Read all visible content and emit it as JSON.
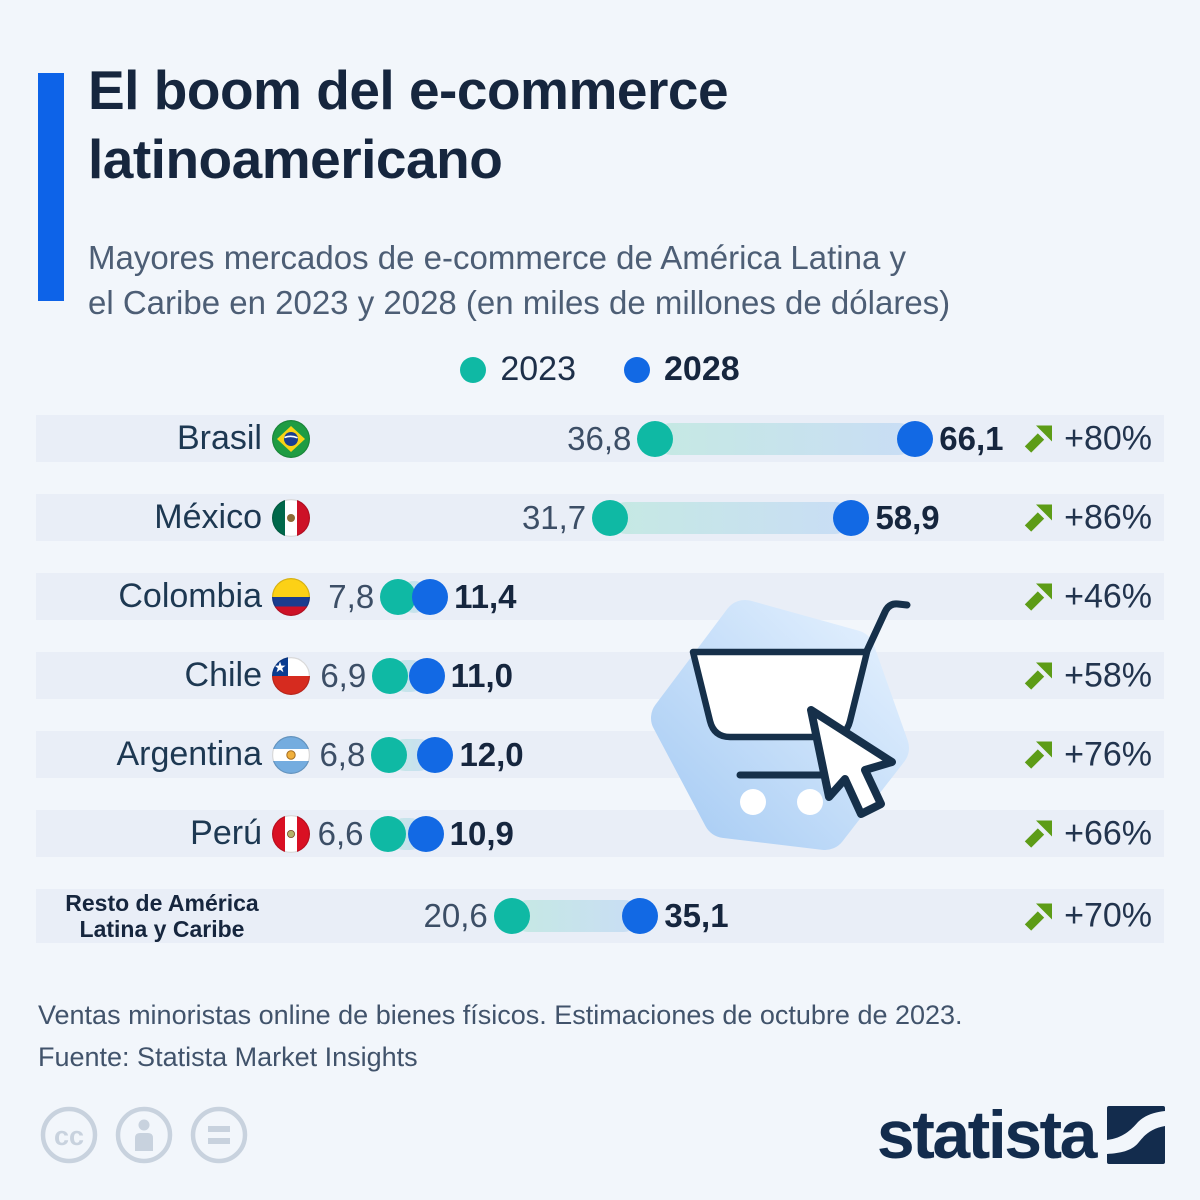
{
  "header": {
    "title": "El boom del e-commerce latinoamericano",
    "title_lines": [
      "El boom del e-commerce",
      "latinoamericano"
    ],
    "subtitle_lines": [
      "Mayores mercados de e-commerce de América Latina y",
      "el Caribe en 2023 y 2028 (en miles de millones de dólares)"
    ]
  },
  "legend": [
    {
      "label": "2023",
      "color": "#0fb9a4",
      "bold": false
    },
    {
      "label": "2028",
      "color": "#1269e4",
      "bold": true
    }
  ],
  "chart_data": {
    "type": "dumbbell",
    "unit": "miles de millones de dólares",
    "series_labels": [
      "2023",
      "2028"
    ],
    "value_format": "decimal-comma",
    "rows": [
      {
        "id": "brasil",
        "country": "Brasil",
        "country_lines": [
          "Brasil"
        ],
        "flag": "brasil",
        "v2023": 36.8,
        "v2028": 66.1,
        "v2023_label": "36,8",
        "v2028_label": "66,1",
        "growth": "+80%"
      },
      {
        "id": "mexico",
        "country": "México",
        "country_lines": [
          "México"
        ],
        "flag": "mexico",
        "v2023": 31.7,
        "v2028": 58.9,
        "v2023_label": "31,7",
        "v2028_label": "58,9",
        "growth": "+86%"
      },
      {
        "id": "colombia",
        "country": "Colombia",
        "country_lines": [
          "Colombia"
        ],
        "flag": "colombia",
        "v2023": 7.8,
        "v2028": 11.4,
        "v2023_label": "7,8",
        "v2028_label": "11,4",
        "growth": "+46%"
      },
      {
        "id": "chile",
        "country": "Chile",
        "country_lines": [
          "Chile"
        ],
        "flag": "chile",
        "v2023": 6.9,
        "v2028": 11.0,
        "v2023_label": "6,9",
        "v2028_label": "11,0",
        "growth": "+58%"
      },
      {
        "id": "argentina",
        "country": "Argentina",
        "country_lines": [
          "Argentina"
        ],
        "flag": "argentina",
        "v2023": 6.8,
        "v2028": 12.0,
        "v2023_label": "6,8",
        "v2028_label": "12,0",
        "growth": "+76%"
      },
      {
        "id": "peru",
        "country": "Perú",
        "country_lines": [
          "Perú"
        ],
        "flag": "peru",
        "v2023": 6.6,
        "v2028": 10.9,
        "v2023_label": "6,6",
        "v2028_label": "10,9",
        "growth": "+66%"
      },
      {
        "id": "resto",
        "country": "Resto de América Latina y Caribe",
        "country_lines": [
          "Resto de América",
          "Latina y Caribe"
        ],
        "flag": null,
        "v2023": 20.6,
        "v2028": 35.1,
        "v2023_label": "20,6",
        "v2028_label": "35,1",
        "growth": "+70%"
      }
    ]
  },
  "footer": {
    "note1": "Ventas minoristas online de bienes físicos. Estimaciones de octubre de 2023.",
    "note2": "Fuente: Statista Market Insights"
  },
  "branding": {
    "logo_text": "statista"
  },
  "colors": {
    "teal": "#0fb9a4",
    "blue": "#1269e4",
    "bar_gradient_start": "#c5e9e3",
    "bar_gradient_end": "#c9ddf5",
    "growth_green": "#5d9c17",
    "accent_blue": "#0d63e8",
    "navy": "#16263e",
    "row_bg": "#e9eef7",
    "page_bg": "#f2f6fb"
  }
}
